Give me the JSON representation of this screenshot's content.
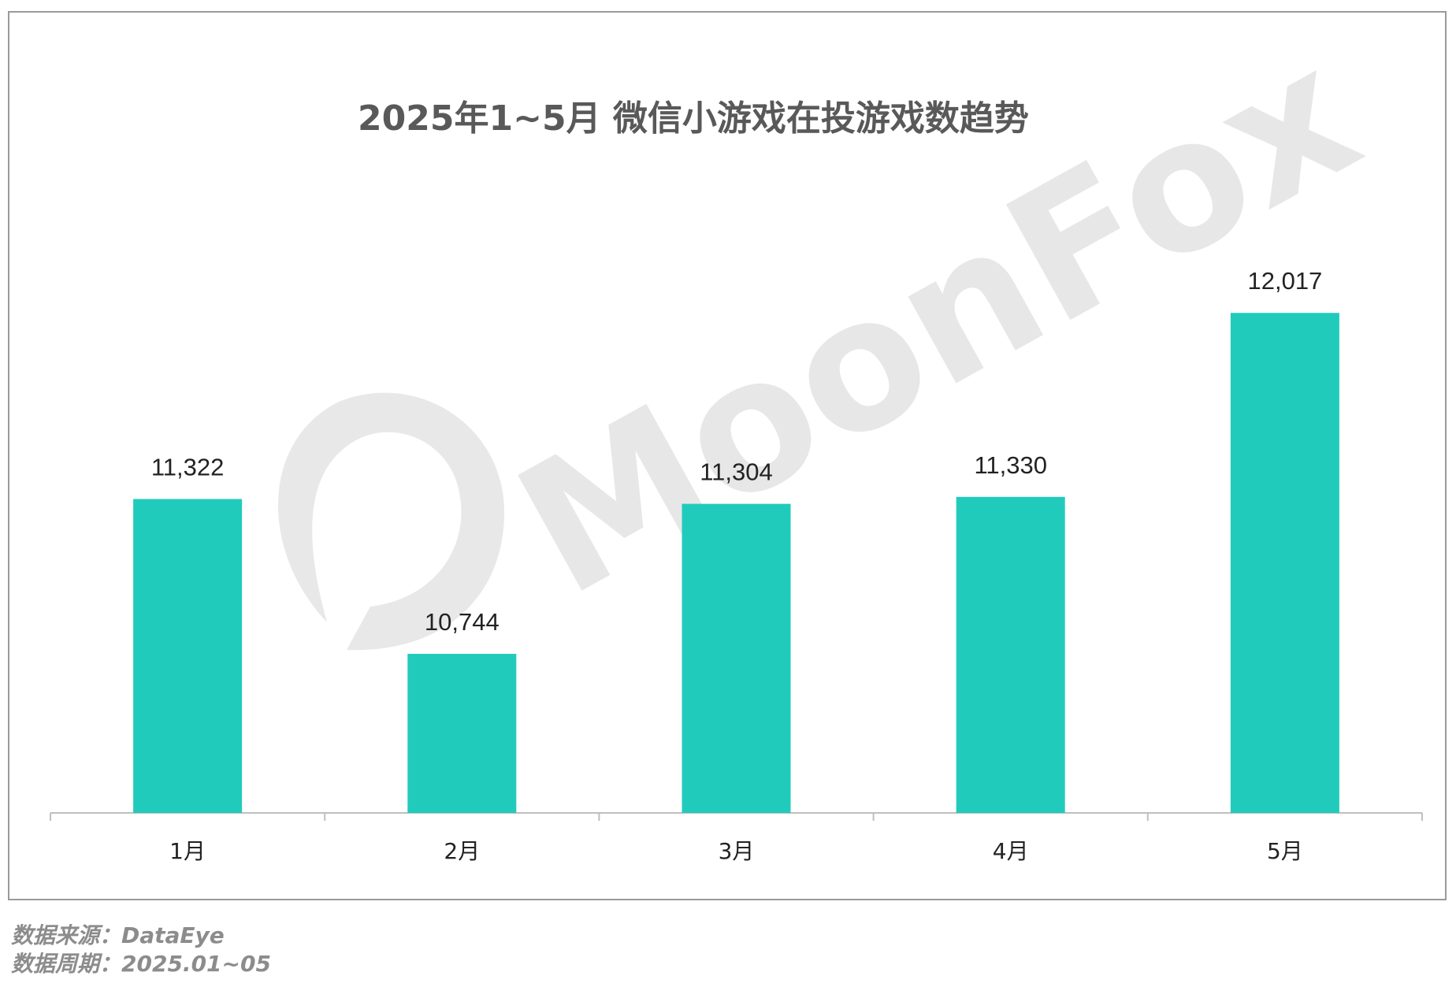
{
  "chart_data": {
    "type": "bar",
    "title": "2025年1~5月 微信小游戏在投游戏数趋势",
    "categories": [
      "1月",
      "2月",
      "3月",
      "4月",
      "5月"
    ],
    "values": [
      11322,
      10744,
      11304,
      11330,
      12017
    ],
    "value_labels": [
      "11,322",
      "10,744",
      "11,304",
      "11,330",
      "12,017"
    ],
    "ylim": [
      10150,
      12200
    ],
    "bar_color": "#21cbbc",
    "grid": false,
    "legend": "none"
  },
  "watermark": "MoonFox",
  "footer": {
    "source": "数据来源：DataEye",
    "period": "数据周期：2025.01~05"
  }
}
